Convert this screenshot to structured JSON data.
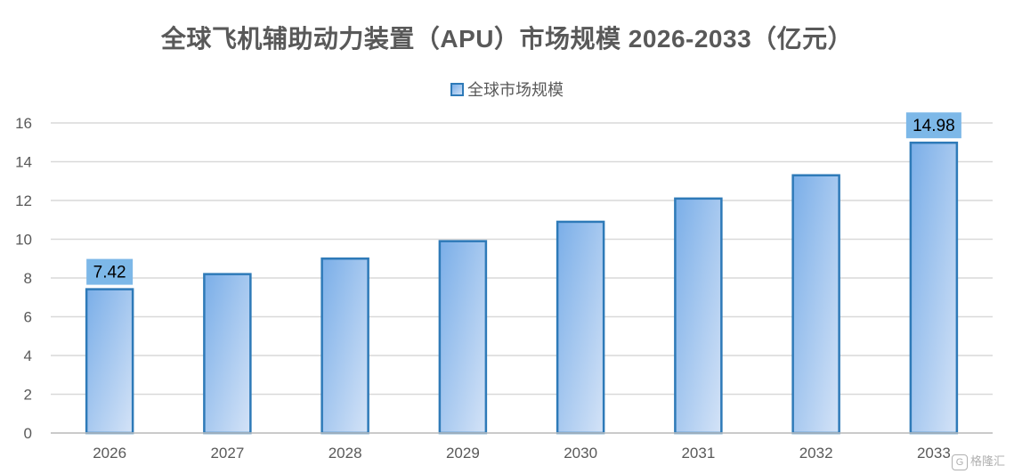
{
  "chart_data": {
    "type": "bar",
    "title": "全球飞机辅助动力装置（APU）市场规模 2026-2033（亿元）",
    "categories": [
      "2026",
      "2027",
      "2028",
      "2029",
      "2030",
      "2031",
      "2032",
      "2033"
    ],
    "series": [
      {
        "name": "全球市场规模",
        "values": [
          7.42,
          8.2,
          9.0,
          9.9,
          10.9,
          12.1,
          13.3,
          14.98
        ],
        "data_labels": [
          "7.42",
          "",
          "",
          "",
          "",
          "",
          "",
          "14.98"
        ]
      }
    ],
    "ylim": [
      0,
      16
    ],
    "yticks": [
      "0",
      "2",
      "4",
      "6",
      "8",
      "10",
      "12",
      "14",
      "16"
    ],
    "grid": true,
    "legend_position": "top"
  },
  "colors": {
    "bar_border": "#2e7ab8",
    "bar_fill_start": "#7aaee8",
    "bar_fill_end": "#d4e3f7",
    "label_bg": "#7db8e8",
    "gridline": "#d9d9d9",
    "text": "#595959"
  },
  "watermark": {
    "icon": "G",
    "text": "格隆汇"
  }
}
